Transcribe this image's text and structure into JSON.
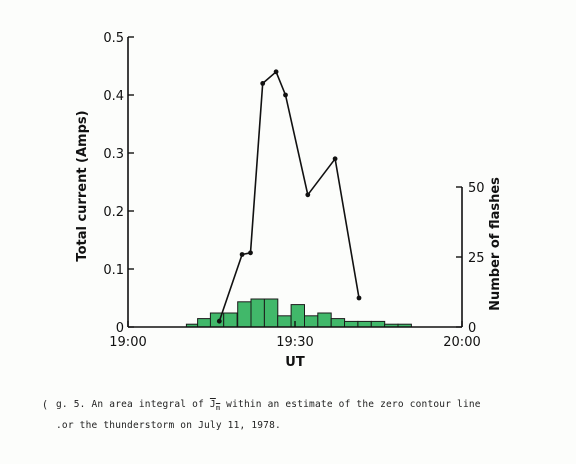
{
  "chart_data": {
    "type": "bar+line",
    "xlabel": "UT",
    "ylabel_left": "Total current (Amps)",
    "ylabel_right": "Number of flashes",
    "x_tick_labels": [
      "19:00",
      "19:30",
      "20:00"
    ],
    "x_range_minutes": [
      0,
      60
    ],
    "y_left_ticks": [
      "0",
      "0.1",
      "0.2",
      "0.3",
      "0.4",
      "0.5"
    ],
    "y_left_range": [
      0,
      0.5
    ],
    "y_right_ticks": [
      "0",
      "25",
      "50"
    ],
    "y_right_range": [
      0,
      50
    ],
    "line_series": {
      "x_minutes": [
        16.4,
        20.5,
        22.0,
        24.2,
        26.6,
        28.3,
        32.3,
        37.2,
        41.5
      ],
      "current_amps": [
        0.01,
        0.125,
        0.128,
        0.42,
        0.44,
        0.4,
        0.228,
        0.29,
        0.05
      ]
    },
    "bar_series": {
      "bin_start_minutes": [
        10.5,
        12.5,
        14.8,
        17.2,
        19.7,
        22.1,
        24.5,
        26.9,
        29.3,
        31.7,
        34.1,
        36.5,
        38.9,
        41.3,
        43.7,
        46.1,
        48.5
      ],
      "flashes": [
        1,
        3,
        5,
        5,
        9,
        10,
        10,
        4,
        8,
        4,
        5,
        3,
        2,
        2,
        2,
        1,
        1
      ]
    },
    "bar_color": "#41b86a",
    "line_color": "#111111"
  },
  "caption": {
    "line1": "g. 5. An area integral of J within an estimate of the zero contour line",
    "line1_symbol": "J",
    "line1_subscript": "m",
    "line2": ".or the thunderstorm on July 11, 1978.",
    "margin_mark": "("
  }
}
